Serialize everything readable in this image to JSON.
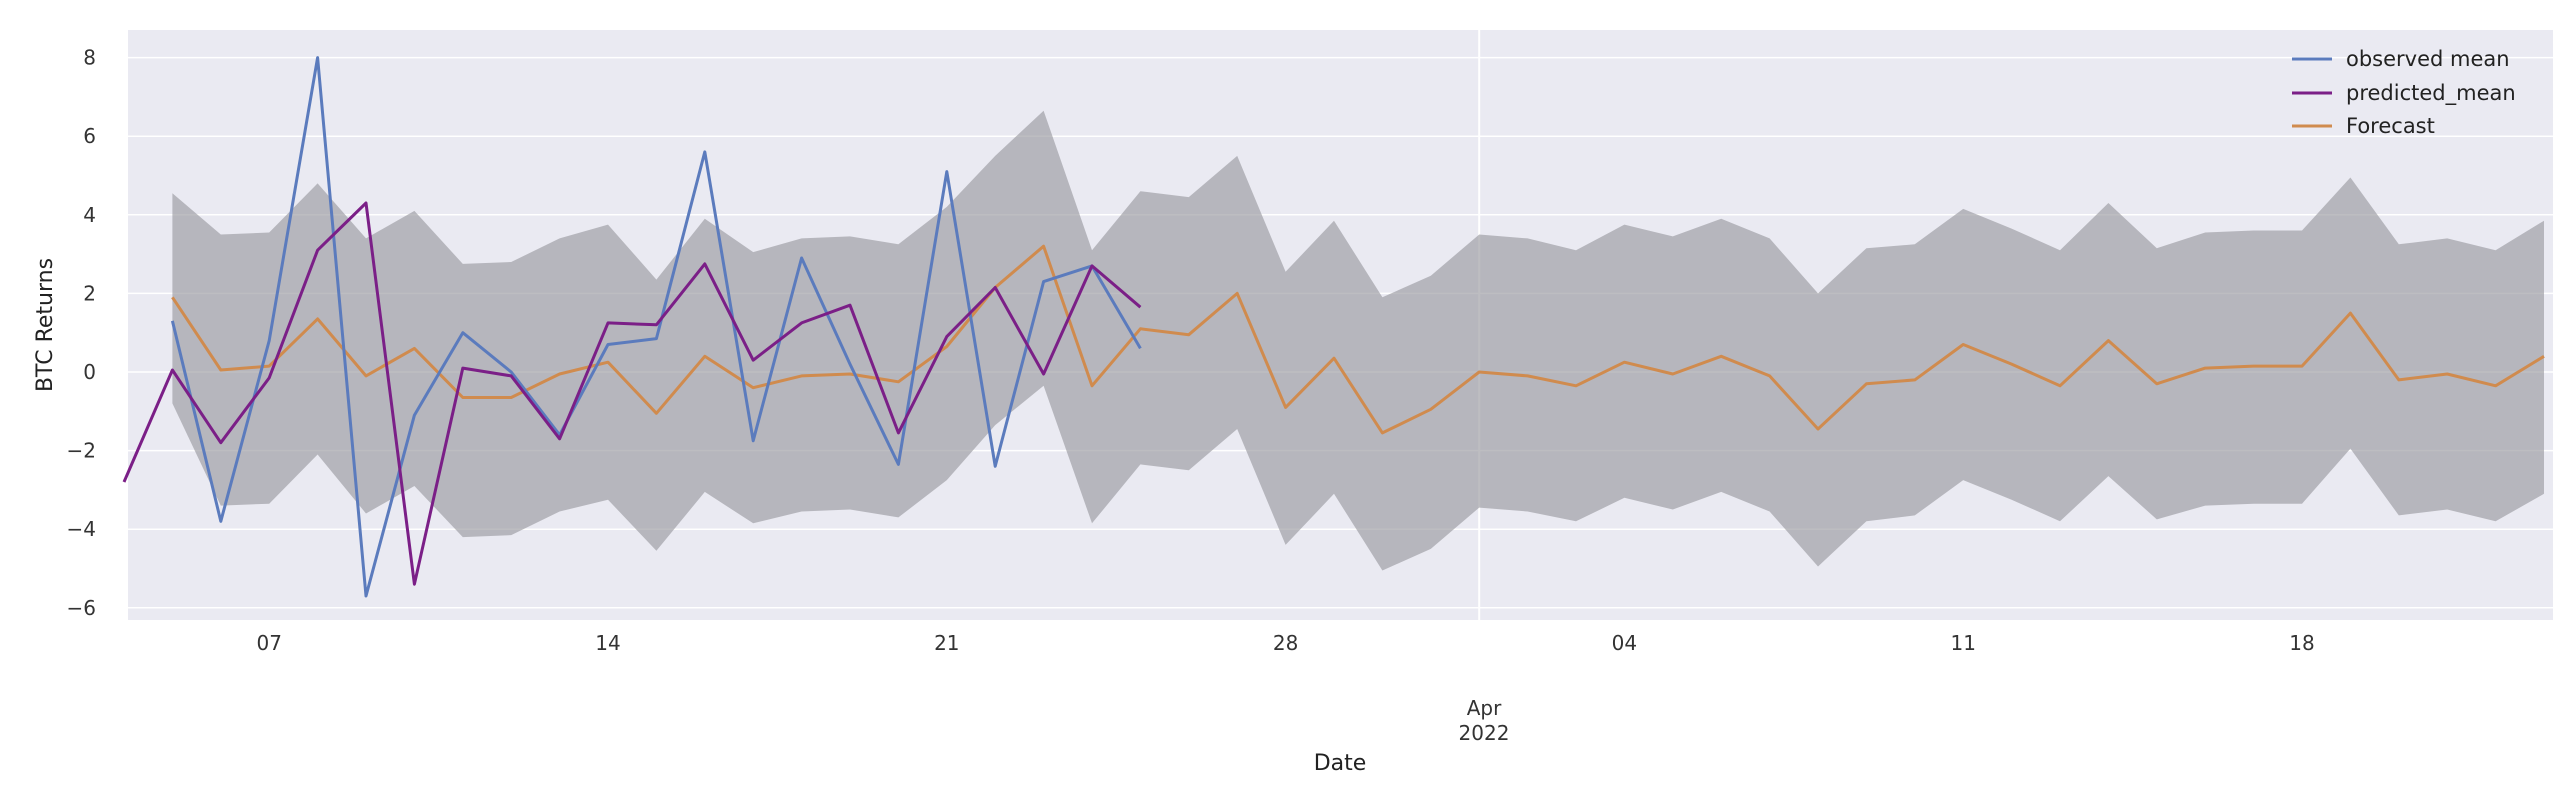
{
  "chart_data": {
    "type": "line",
    "xlabel": "Date",
    "ylabel": "BTC Returns",
    "ylim": [
      -6.5,
      8.6
    ],
    "grid": true,
    "legend_position": "top-right",
    "x_tick_labels": [
      "07",
      "14",
      "21",
      "28",
      "04",
      "11",
      "18"
    ],
    "x_secondary_label": [
      "Apr",
      "2022"
    ],
    "y_ticks": [
      -6,
      -4,
      -2,
      0,
      2,
      4,
      6,
      8
    ],
    "x_dates": [
      "03-05",
      "03-06",
      "03-07",
      "03-08",
      "03-09",
      "03-10",
      "03-11",
      "03-12",
      "03-13",
      "03-14",
      "03-15",
      "03-16",
      "03-17",
      "03-18",
      "03-19",
      "03-20",
      "03-21",
      "03-22",
      "03-23",
      "03-24",
      "03-25",
      "03-26",
      "03-27",
      "03-28",
      "03-29",
      "03-30",
      "03-31",
      "04-01",
      "04-02",
      "04-03",
      "04-04",
      "04-05",
      "04-06",
      "04-07",
      "04-08",
      "04-09",
      "04-10",
      "04-11",
      "04-12",
      "04-13",
      "04-14",
      "04-15",
      "04-16",
      "04-17",
      "04-18",
      "04-19",
      "04-20",
      "04-21",
      "04-22",
      "04-23",
      "04-24"
    ],
    "x_start_date": "03-04",
    "series": [
      {
        "name": "observed mean",
        "color": "#5b7bbd",
        "start_date": "03-05",
        "values": [
          1.3,
          -3.8,
          0.8,
          8.0,
          -5.7,
          -1.1,
          1.0,
          0.0,
          -1.6,
          0.7,
          0.85,
          5.6,
          -1.75,
          2.9,
          0.2,
          -2.35,
          5.1,
          -2.4,
          2.3,
          2.7,
          0.6
        ]
      },
      {
        "name": "predicted_mean",
        "color": "#7b1f87",
        "start_date": "03-04",
        "values": [
          -2.8,
          0.05,
          -1.8,
          -0.15,
          3.1,
          4.3,
          -5.4,
          0.1,
          -0.1,
          -1.7,
          1.25,
          1.2,
          2.75,
          0.3,
          1.25,
          1.7,
          -1.55,
          0.9,
          2.15,
          -0.05,
          2.7,
          1.65
        ]
      },
      {
        "name": "Forecast",
        "color": "#d08b4e",
        "start_date": "03-05",
        "values": [
          1.9,
          0.05,
          0.15,
          1.35,
          -0.1,
          0.6,
          -0.65,
          -0.65,
          -0.05,
          0.25,
          -1.05,
          0.4,
          -0.4,
          -0.1,
          -0.05,
          -0.25,
          0.65,
          2.15,
          3.2,
          -0.35,
          1.1,
          0.95,
          2.0,
          -0.9,
          0.35,
          -1.55,
          -0.95,
          0.0,
          -0.1,
          -0.35,
          0.25,
          -0.05,
          0.4,
          -0.1,
          -1.45,
          -0.3,
          -0.2,
          0.7,
          0.2,
          -0.35,
          0.8,
          -0.3,
          0.1,
          0.15,
          0.15,
          1.5,
          -0.2,
          -0.05,
          -0.35,
          0.4
        ]
      }
    ],
    "confidence_band": {
      "start_date": "03-05",
      "upper": [
        4.55,
        3.5,
        3.55,
        4.8,
        3.4,
        4.1,
        2.75,
        2.8,
        3.4,
        3.75,
        2.35,
        3.9,
        3.05,
        3.4,
        3.45,
        3.25,
        4.2,
        5.5,
        6.65,
        3.1,
        4.6,
        4.45,
        5.5,
        2.55,
        3.85,
        1.9,
        2.45,
        3.5,
        3.4,
        3.1,
        3.75,
        3.45,
        3.9,
        3.4,
        2.0,
        3.15,
        3.25,
        4.15,
        3.65,
        3.1,
        4.3,
        3.15,
        3.55,
        3.6,
        3.6,
        4.95,
        3.25,
        3.4,
        3.1,
        3.85
      ],
      "lower": [
        -0.8,
        -3.4,
        -3.35,
        -2.1,
        -3.6,
        -2.9,
        -4.2,
        -4.15,
        -3.55,
        -3.25,
        -4.55,
        -3.05,
        -3.85,
        -3.55,
        -3.5,
        -3.7,
        -2.75,
        -1.35,
        -0.35,
        -3.85,
        -2.35,
        -2.5,
        -1.45,
        -4.4,
        -3.1,
        -5.05,
        -4.5,
        -3.45,
        -3.55,
        -3.8,
        -3.2,
        -3.5,
        -3.05,
        -3.55,
        -4.95,
        -3.8,
        -3.65,
        -2.75,
        -3.25,
        -3.8,
        -2.65,
        -3.75,
        -3.4,
        -3.35,
        -3.35,
        -1.95,
        -3.65,
        -3.5,
        -3.8,
        -3.1
      ]
    },
    "colors": {
      "plot_background": "#eaeaf2",
      "grid": "#ffffff",
      "band": "#9a9aa0"
    }
  }
}
